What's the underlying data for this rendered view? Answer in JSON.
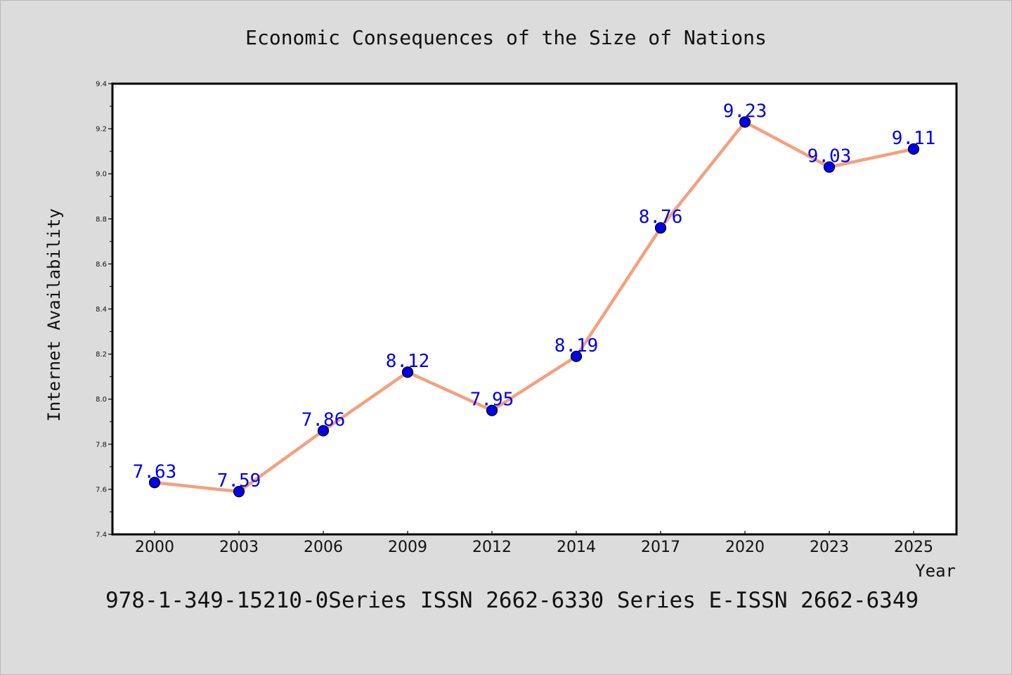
{
  "chart_data": {
    "type": "line",
    "title": "Economic Consequences of the Size of Nations",
    "xlabel": "Year",
    "ylabel": "Internet Availability",
    "categories": [
      "2000",
      "2003",
      "2006",
      "2009",
      "2012",
      "2014",
      "2017",
      "2020",
      "2023",
      "2025"
    ],
    "series": [
      {
        "values": [
          7.63,
          7.59,
          7.86,
          8.12,
          7.95,
          8.19,
          8.76,
          9.23,
          9.03,
          9.11
        ]
      }
    ],
    "data_labels": [
      "7.63",
      "7.59",
      "7.86",
      "8.12",
      "7.95",
      "8.19",
      "8.76",
      "9.23",
      "9.03",
      "9.11"
    ],
    "ylim": [
      7.4,
      9.4
    ],
    "yticks": [
      "7.4",
      "7.6",
      "7.8",
      "8.0",
      "8.2",
      "8.4",
      "8.6",
      "8.8",
      "9.0",
      "9.2",
      "9.4"
    ],
    "grid": false,
    "line_color": "#f4a07f",
    "marker_color": "#0000ee",
    "label_color": "#0000ee"
  },
  "footer": "978-1-349-15210-0Series ISSN 2662-6330 Series E-ISSN 2662-6349"
}
